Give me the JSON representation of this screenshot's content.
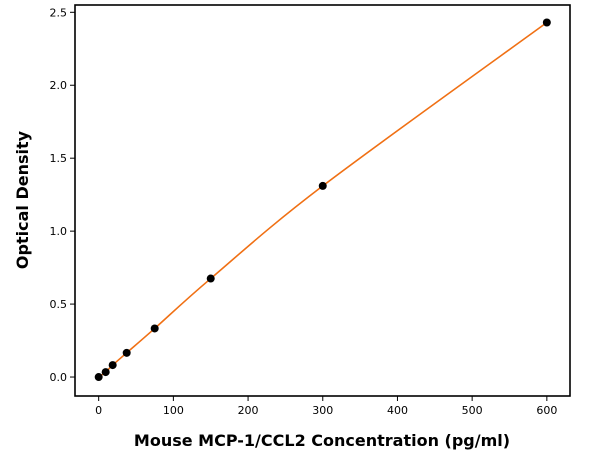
{
  "chart_data": {
    "type": "line",
    "title": "",
    "xlabel": "Mouse MCP-1/CCL2 Concentration (pg/ml)",
    "ylabel": "Optical Density",
    "xlim": [
      -31.7,
      631
    ],
    "ylim": [
      -0.13,
      2.55
    ],
    "xticks": [
      0,
      100,
      200,
      300,
      400,
      500,
      600
    ],
    "xtick_labels": [
      "0",
      "100",
      "200",
      "300",
      "400",
      "500",
      "600"
    ],
    "yticks": [
      0,
      0.5,
      1,
      1.5,
      2,
      2.5
    ],
    "ytick_labels": [
      "0.0",
      "0.5",
      "1.0",
      "1.5",
      "2.0",
      "2.5"
    ],
    "grid": false,
    "series": [
      {
        "x": [
          0,
          9.375,
          18.75,
          37.5,
          75,
          150,
          300,
          600
        ],
        "y": [
          0.0,
          0.034,
          0.082,
          0.166,
          0.333,
          0.675,
          1.31,
          2.43
        ],
        "marker_color": "#000000",
        "line_color": "#f07014"
      }
    ]
  }
}
